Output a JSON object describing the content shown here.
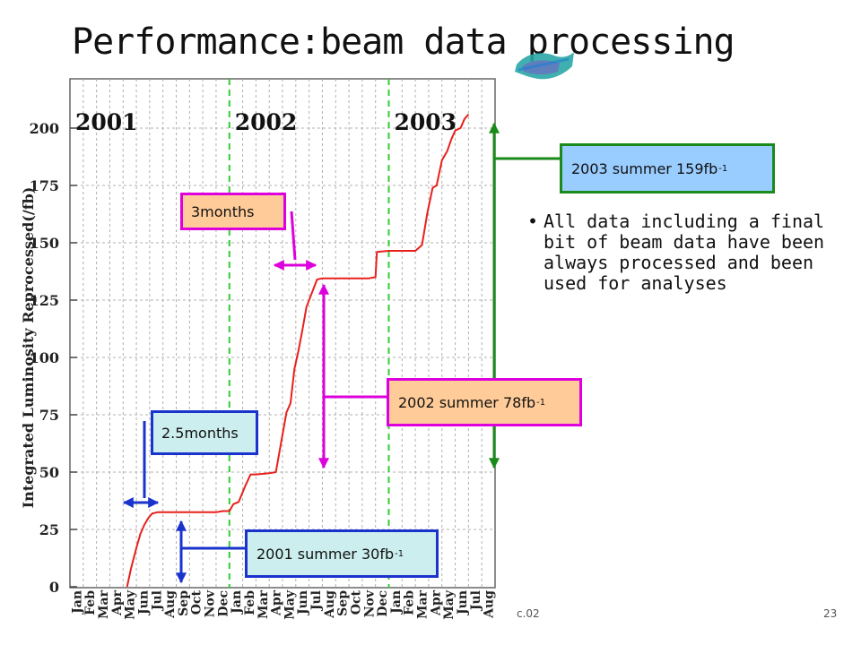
{
  "slide": {
    "title": "Performance:beam data processing",
    "bullet": "All data including a final bit of beam data have been always processed and been used for analyses",
    "footer_left": "c.02",
    "page_number": "23"
  },
  "annotations": {
    "months_3": "3months",
    "months_2_5": "2.5months",
    "summer_2003": "2003 summer 159fb",
    "summer_2002": "2002 summer 78fb",
    "summer_2001": "2001 summer 30fb",
    "unit_sup": "-1"
  },
  "colors": {
    "curve": "#e8201c",
    "year_divider": "#33cc33",
    "grid": "#b0b0b0",
    "box_2003_fill": "#99ccff",
    "box_2003_border": "#1a8a1a",
    "box_orange_fill": "#ffcc99",
    "box_orange_border": "#dd00dd",
    "box_blue_border": "#1a33cc",
    "box_2001_fill": "#cceeee",
    "box_2_5_fill": "#cceeee"
  },
  "chart_data": {
    "type": "line",
    "ylabel": "Integrated Luminosity Reprocessed(/fb)",
    "xlabel": "",
    "ylim": [
      0,
      210
    ],
    "yticks": [
      0,
      25,
      50,
      75,
      100,
      125,
      150,
      175,
      200
    ],
    "year_labels": [
      "2001",
      "2002",
      "2003"
    ],
    "x_categories": [
      "Jan",
      "Feb",
      "Mar",
      "Apr",
      "May",
      "Jun",
      "Jul",
      "Aug",
      "Sep",
      "Oct",
      "Nov",
      "Dec",
      "Jan",
      "Feb",
      "Mar",
      "Apr",
      "May",
      "Jun",
      "Jul",
      "Aug",
      "Sep",
      "Oct",
      "Nov",
      "Dec",
      "Jan",
      "Feb",
      "Mar",
      "Apr",
      "May",
      "Jun",
      "Jul",
      "Aug"
    ],
    "grid": true,
    "series": [
      {
        "x": [
          4.3,
          4.6,
          5.0,
          5.3,
          5.6,
          5.9,
          6.2,
          6.6,
          7.0,
          10.0,
          11.0,
          11.5,
          12.0,
          12.3,
          12.7,
          13.2,
          13.6,
          14.0,
          15.0,
          15.5,
          15.9,
          16.3,
          16.6,
          16.9,
          17.2,
          17.5,
          17.8,
          18.2,
          18.6,
          19.0,
          19.4,
          21.0,
          22.0,
          22.5,
          23.0,
          23.1,
          24.0,
          25.0,
          26.0,
          26.5,
          26.9,
          27.3,
          27.6,
          28.0,
          28.4,
          28.7,
          29.0,
          29.4,
          29.7,
          30.0
        ],
        "y": [
          0,
          8,
          17,
          23,
          27,
          30,
          32,
          32.5,
          32.5,
          32.5,
          32.5,
          33,
          33,
          36,
          37,
          44,
          49,
          49,
          49.5,
          50,
          63,
          76,
          80,
          95,
          103,
          112,
          122,
          128,
          134,
          134.5,
          134.5,
          134.5,
          134.5,
          134.5,
          135,
          146,
          146.5,
          146.5,
          146.5,
          149,
          163,
          174,
          175,
          186,
          190,
          195,
          199,
          200,
          204,
          206
        ]
      }
    ]
  }
}
